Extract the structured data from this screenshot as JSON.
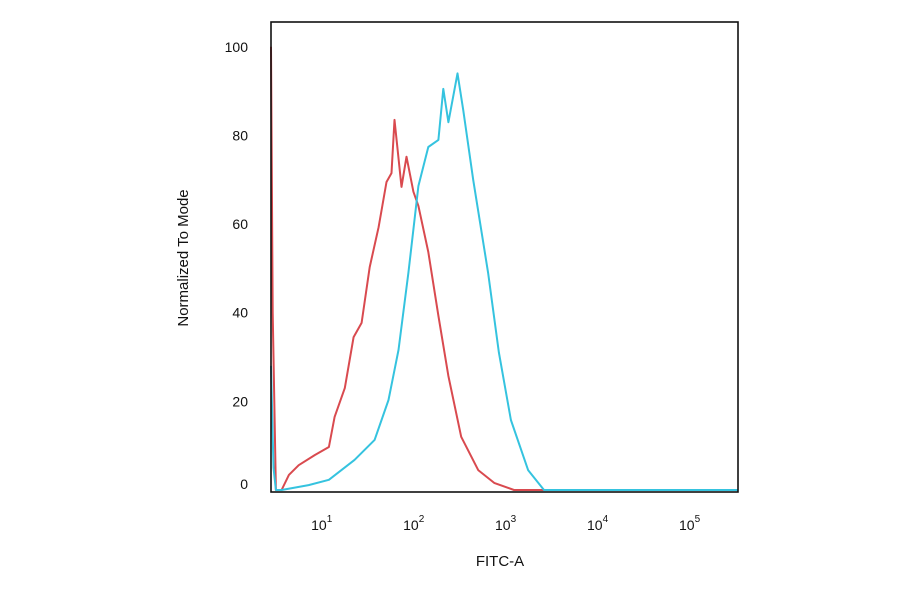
{
  "chart_data": {
    "type": "line",
    "title": "",
    "xlabel": "FITC-A",
    "ylabel": "Normalized To Mode",
    "xscale": "log",
    "xlim": [
      2.3,
      275000
    ],
    "ylim": [
      0,
      105.6
    ],
    "grid": false,
    "legend": "none",
    "yticks": [
      "0",
      "20",
      "40",
      "60",
      "80",
      "100"
    ],
    "xticks": [
      {
        "base": "10",
        "exp": "1"
      },
      {
        "base": "10",
        "exp": "2"
      },
      {
        "base": "10",
        "exp": "3"
      },
      {
        "base": "10",
        "exp": "4"
      },
      {
        "base": "10",
        "exp": "5"
      }
    ],
    "series": [
      {
        "color": "#d94a4f",
        "x": [
          2.3,
          2.4,
          2.6,
          3.0,
          3.6,
          4.6,
          6.9,
          9.8,
          11.3,
          14.6,
          18.2,
          22.2,
          27.2,
          34,
          41.5,
          47,
          50.7,
          60.3,
          68.4,
          81.3,
          92.2,
          118,
          152,
          195,
          269,
          412,
          615,
          1010,
          275000
        ],
        "y": [
          100,
          40,
          0,
          0,
          3.4,
          5.6,
          7.9,
          9.7,
          16.5,
          23,
          34.5,
          37.7,
          50.3,
          59.3,
          69.5,
          71.5,
          83.5,
          68.4,
          75.2,
          67.3,
          64.1,
          53.7,
          39.3,
          25.7,
          12,
          4.5,
          1.6,
          0,
          0
        ]
      },
      {
        "color": "#35c3df",
        "x": [
          2.3,
          2.45,
          2.6,
          3.0,
          5.9,
          9.8,
          18.6,
          30.8,
          43.6,
          56,
          71.8,
          92.2,
          118,
          152,
          172,
          195,
          245,
          283,
          363,
          528,
          692,
          934,
          1435,
          2140,
          275000
        ],
        "y": [
          28,
          5,
          0,
          0,
          1.1,
          2.3,
          6.8,
          11.3,
          20.3,
          31.6,
          49,
          68.6,
          77.4,
          79,
          90.5,
          83,
          94,
          85.8,
          70,
          49,
          31,
          15.8,
          4.5,
          0,
          0
        ]
      }
    ]
  }
}
